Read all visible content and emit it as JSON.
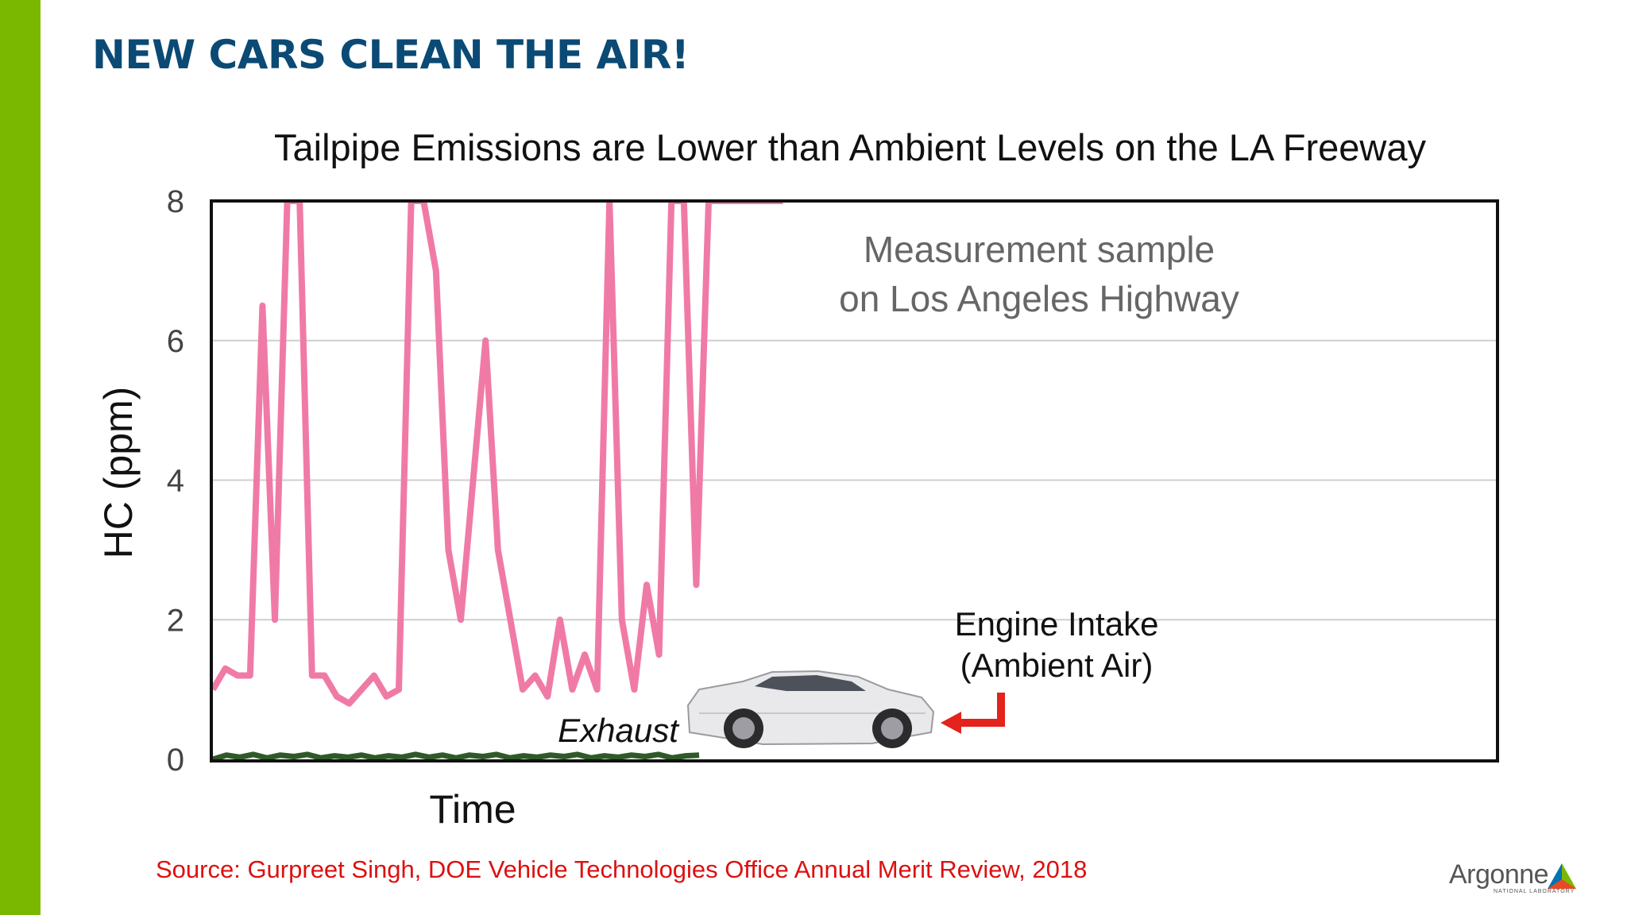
{
  "slide": {
    "title": "NEW CARS CLEAN THE AIR!",
    "source": "Source: Gurpreet Singh, DOE Vehicle Technologies Office Annual Merit Review, 2018",
    "logo_text": "Argonne",
    "logo_subtext": "NATIONAL LABORATORY",
    "colors": {
      "accent_bar": "#7ab800",
      "title": "#0a4a75",
      "source": "#dd1010"
    }
  },
  "chart_data": {
    "type": "line",
    "title": "Tailpipe Emissions are Lower than Ambient Levels on the LA Freeway",
    "xlabel": "Time",
    "ylabel": "HC (ppm)",
    "ylim": [
      0,
      8
    ],
    "yticks": [
      0,
      2,
      4,
      6,
      8
    ],
    "grid": true,
    "annotation": [
      "Measurement sample",
      "on Los Angeles Highway"
    ],
    "series": [
      {
        "name": "Engine Intake (Ambient Air)",
        "label_lines": [
          "Engine Intake",
          "(Ambient Air)"
        ],
        "color": "#f07aa6",
        "x": [
          0,
          1,
          2,
          3,
          4,
          5,
          6,
          7,
          8,
          9,
          10,
          11,
          12,
          13,
          14,
          15,
          16,
          17,
          18,
          19,
          20,
          21,
          22,
          23,
          24,
          25,
          26,
          27,
          28,
          29,
          30,
          31,
          32,
          33,
          34,
          35,
          36,
          37,
          38,
          39,
          40,
          41,
          42,
          43,
          44,
          45,
          46
        ],
        "values": [
          1.0,
          1.3,
          1.2,
          1.2,
          6.5,
          2.0,
          8.0,
          8.0,
          1.2,
          1.2,
          0.9,
          0.8,
          1.0,
          1.2,
          0.9,
          1.0,
          8.0,
          8.0,
          7.0,
          3.0,
          2.0,
          4.0,
          6.0,
          3.0,
          2.0,
          1.0,
          1.2,
          0.9,
          2.0,
          1.0,
          1.5,
          1.0,
          8.0,
          2.0,
          1.0,
          2.5,
          1.5,
          8.0,
          8.0,
          2.5,
          8.0,
          8.0,
          8.0,
          8.0,
          8.0,
          8.0,
          8.0
        ]
      },
      {
        "name": "Exhaust",
        "color": "#2f5a28",
        "x": [
          0,
          1,
          2,
          3,
          4,
          5,
          6,
          7,
          8,
          9,
          10,
          11,
          12,
          13,
          14,
          15,
          16,
          17,
          18,
          19,
          20,
          21,
          22,
          23,
          24,
          25,
          26,
          27,
          28,
          29,
          30,
          31,
          32,
          33,
          34,
          35,
          36
        ],
        "values": [
          0.0,
          0.06,
          0.03,
          0.07,
          0.02,
          0.06,
          0.04,
          0.07,
          0.02,
          0.05,
          0.03,
          0.06,
          0.02,
          0.05,
          0.03,
          0.07,
          0.03,
          0.06,
          0.02,
          0.06,
          0.04,
          0.07,
          0.02,
          0.05,
          0.03,
          0.06,
          0.04,
          0.07,
          0.02,
          0.05,
          0.03,
          0.06,
          0.04,
          0.07,
          0.02,
          0.05,
          0.06
        ]
      }
    ]
  }
}
